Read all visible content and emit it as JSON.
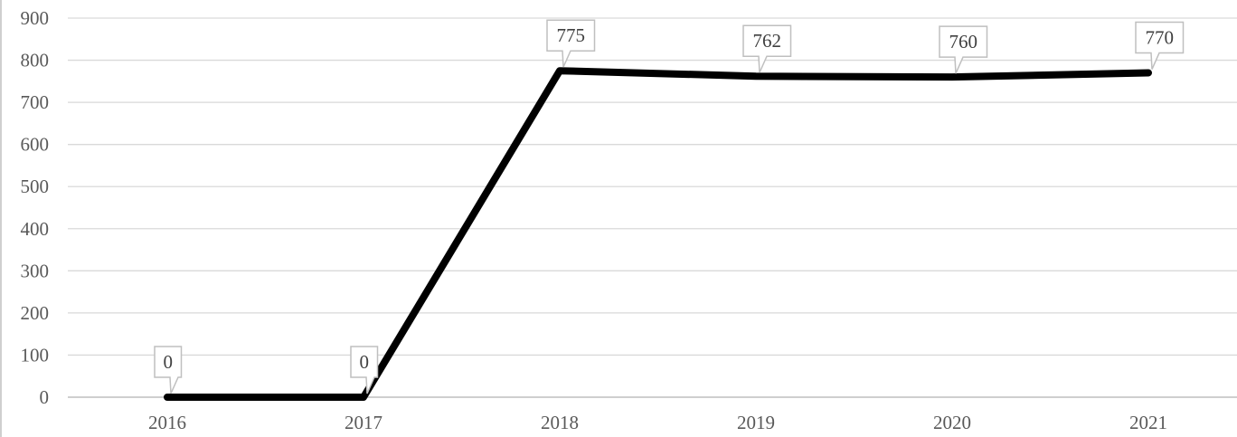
{
  "chart_data": {
    "type": "line",
    "categories": [
      "2016",
      "2017",
      "2018",
      "2019",
      "2020",
      "2021"
    ],
    "series": [
      {
        "values": [
          0,
          0,
          775,
          762,
          760,
          770
        ],
        "color": "#000000"
      }
    ],
    "ylim": [
      0,
      900
    ],
    "yticks": [
      "0",
      "100",
      "200",
      "300",
      "400",
      "500",
      "600",
      "700",
      "800",
      "900"
    ],
    "data_labels": [
      "0",
      "0",
      "775",
      "762",
      "760",
      "770"
    ],
    "grid": true,
    "legend": "none"
  }
}
